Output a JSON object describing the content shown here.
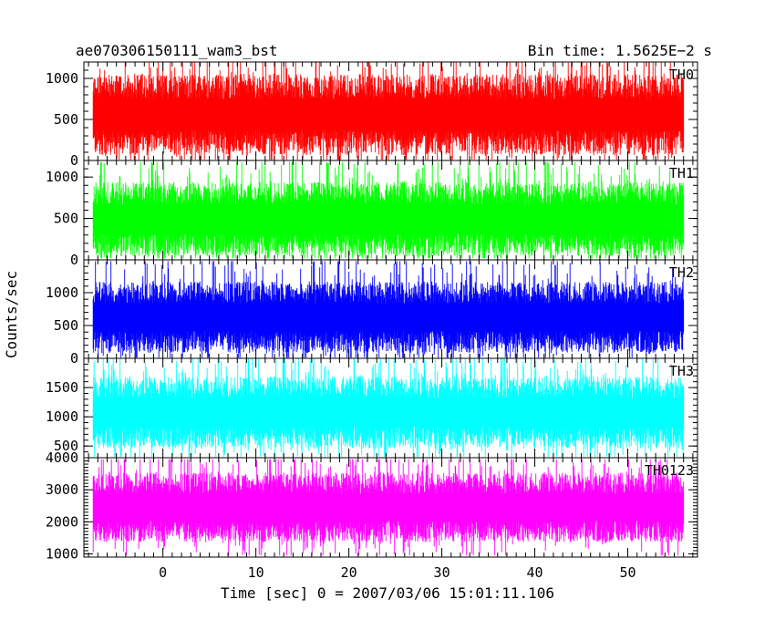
{
  "header": {
    "left_title": "ae070306150111_wam3_bst",
    "right_title": "Bin time: 1.5625E−2 s"
  },
  "chart_data": {
    "type": "line",
    "title": "ae070306150111_wam3_bst",
    "subtitle": "Bin time: 1.5625E−2 s",
    "xlabel": "Time [sec] 0 = 2007/03/06 15:01:11.106",
    "ylabel": "Counts/sec",
    "xlim": [
      -8.5,
      57.5
    ],
    "x_ticks": [
      0,
      10,
      20,
      30,
      40,
      50
    ],
    "x_tick_labels": [
      "0",
      "10",
      "20",
      "30",
      "40",
      "50"
    ],
    "data_x_range": [
      -7.5,
      56.0
    ],
    "bin_time_s": 0.015625,
    "grid": false,
    "legend": "none",
    "panels": [
      {
        "name": "TH0",
        "color": "#ff0000",
        "ylim": [
          0,
          1200
        ],
        "y_ticks": [
          0,
          500,
          1000
        ],
        "y_tick_labels": [
          "0",
          "500",
          "1000"
        ],
        "typical_low": 220,
        "typical_high": 900,
        "min_value": 10,
        "max_value": 1200
      },
      {
        "name": "TH1",
        "color": "#00ff00",
        "ylim": [
          0,
          1200
        ],
        "y_ticks": [
          0,
          500,
          1000
        ],
        "y_tick_labels": [
          "0",
          "500",
          "1000"
        ],
        "typical_low": 180,
        "typical_high": 800,
        "min_value": 20,
        "max_value": 1180
      },
      {
        "name": "TH2",
        "color": "#0000ff",
        "ylim": [
          0,
          1500
        ],
        "y_ticks": [
          0,
          500,
          1000
        ],
        "y_tick_labels": [
          "0",
          "500",
          "1000"
        ],
        "typical_low": 250,
        "typical_high": 1000,
        "min_value": 10,
        "max_value": 1480
      },
      {
        "name": "TH3",
        "color": "#00ffff",
        "ylim": [
          300,
          2000
        ],
        "y_ticks": [
          500,
          1000,
          1500
        ],
        "y_tick_labels": [
          "500",
          "1000",
          "1500"
        ],
        "typical_low": 650,
        "typical_high": 1500,
        "min_value": 320,
        "max_value": 1990
      },
      {
        "name": "TH0123",
        "color": "#ff00ff",
        "ylim": [
          900,
          4000
        ],
        "y_ticks": [
          1000,
          2000,
          3000,
          4000
        ],
        "y_tick_labels": [
          "1000",
          "2000",
          "3000",
          "4000"
        ],
        "typical_low": 1700,
        "typical_high": 3200,
        "min_value": 950,
        "max_value": 3950
      }
    ]
  }
}
